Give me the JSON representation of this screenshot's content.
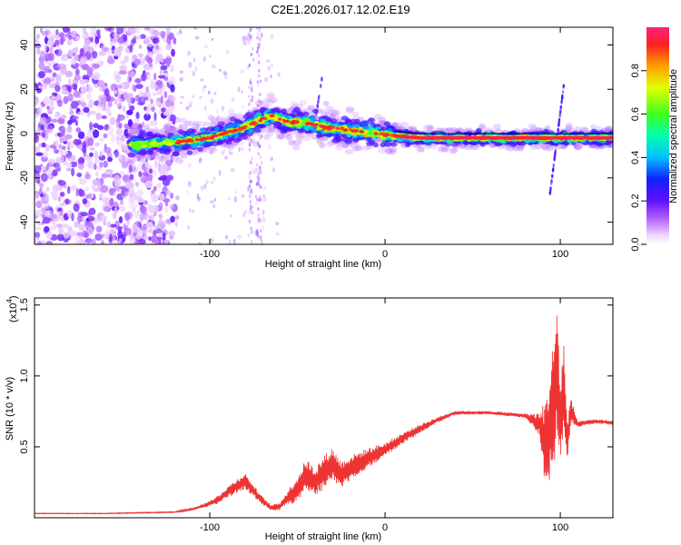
{
  "title": "C2E1.2026.017.12.02.E19",
  "chart_data": [
    {
      "type": "heatmap",
      "xlabel": "Height of straight line (km)",
      "ylabel": "Frequency (Hz)",
      "xlim": [
        -200,
        130
      ],
      "ylim": [
        -50,
        48
      ],
      "xticks": [
        -100,
        0,
        100
      ],
      "xtick_labels": [
        "-100",
        "0",
        "100"
      ],
      "yticks": [
        -40,
        -20,
        0,
        20,
        40
      ],
      "ytick_labels": [
        "-40",
        "-20",
        "0",
        "20",
        "40"
      ],
      "colorbar": {
        "label": "Normalized spectral amplitude",
        "range": [
          0,
          1
        ],
        "ticks": [
          0.0,
          0.2,
          0.4,
          0.6,
          0.8
        ],
        "tick_labels": [
          "0.0",
          "0.2",
          "0.4",
          "0.6",
          "0.8"
        ]
      },
      "ridge": {
        "x": [
          -140,
          -120,
          -100,
          -80,
          -65,
          -55,
          -45,
          -35,
          -25,
          -15,
          -5,
          5,
          20,
          40,
          60,
          80,
          100,
          130
        ],
        "y": [
          -5,
          -4,
          -2,
          3,
          8,
          5,
          5,
          3,
          2,
          1,
          0,
          -1,
          -2,
          -2,
          -2,
          -2,
          -2,
          -2
        ]
      }
    },
    {
      "type": "line",
      "xlabel": "Height of straight line (km)",
      "ylabel": "SNR (10 * v/v)",
      "yscale_label": "(x10",
      "yscale_exp": "4",
      "yscale_close": ")",
      "xlim": [
        -200,
        130
      ],
      "ylim": [
        0,
        1.55
      ],
      "xticks": [
        -100,
        0,
        100
      ],
      "xtick_labels": [
        "-100",
        "0",
        "100"
      ],
      "yticks": [
        0.5,
        1.0,
        1.5
      ],
      "ytick_labels": [
        "0.5",
        "1.0",
        "1.5"
      ],
      "series": [
        {
          "name": "SNR",
          "color": "#ee3333",
          "x": [
            -200,
            -160,
            -120,
            -110,
            -100,
            -95,
            -90,
            -85,
            -80,
            -75,
            -70,
            -65,
            -60,
            -55,
            -50,
            -45,
            -40,
            -35,
            -30,
            -25,
            -20,
            -10,
            0,
            10,
            20,
            30,
            40,
            60,
            80,
            88,
            92,
            96,
            98,
            100,
            102,
            104,
            106,
            110,
            120,
            130
          ],
          "y": [
            0.03,
            0.03,
            0.04,
            0.06,
            0.1,
            0.13,
            0.18,
            0.22,
            0.26,
            0.19,
            0.12,
            0.07,
            0.08,
            0.15,
            0.2,
            0.3,
            0.25,
            0.32,
            0.38,
            0.3,
            0.35,
            0.42,
            0.48,
            0.56,
            0.63,
            0.69,
            0.74,
            0.74,
            0.72,
            0.66,
            0.5,
            0.8,
            1.0,
            0.68,
            0.9,
            0.55,
            0.75,
            0.66,
            0.68,
            0.67
          ],
          "noise_amp": [
            0.003,
            0.003,
            0.004,
            0.01,
            0.02,
            0.03,
            0.04,
            0.05,
            0.06,
            0.04,
            0.03,
            0.02,
            0.03,
            0.05,
            0.1,
            0.12,
            0.1,
            0.12,
            0.12,
            0.1,
            0.09,
            0.07,
            0.05,
            0.04,
            0.03,
            0.02,
            0.015,
            0.012,
            0.015,
            0.08,
            0.35,
            0.45,
            0.55,
            0.3,
            0.35,
            0.15,
            0.1,
            0.02,
            0.015,
            0.015
          ]
        }
      ]
    }
  ]
}
